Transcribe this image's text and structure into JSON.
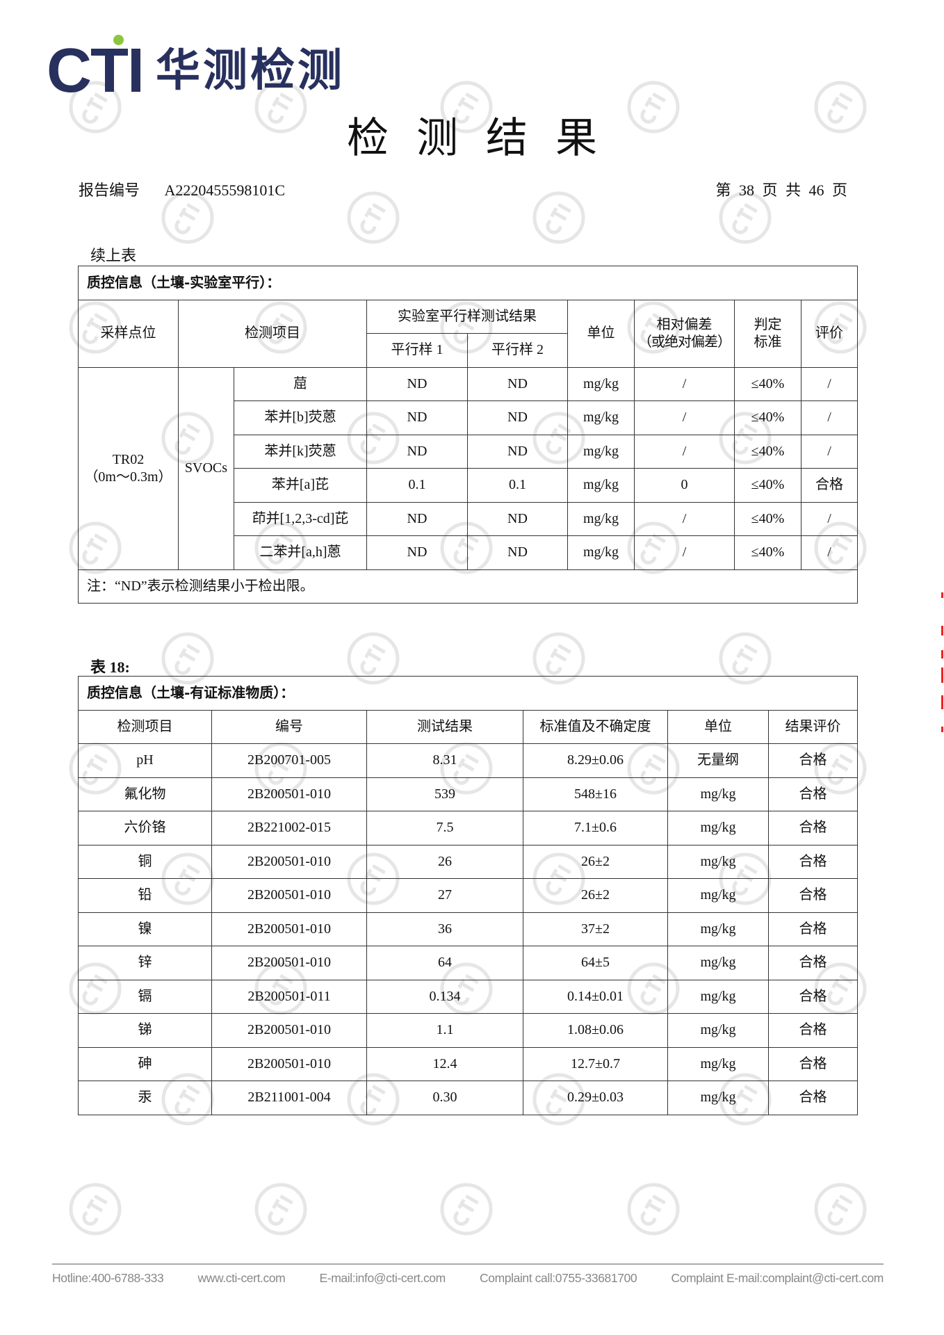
{
  "logo": {
    "brand": "CTI",
    "name_cn": "华测检测",
    "colors": {
      "primary": "#28305e",
      "dot": "#8cc63f"
    }
  },
  "watermark": {
    "text": "CTI"
  },
  "title": "检测结果",
  "report": {
    "label": "报告编号",
    "number": "A2220455598101C"
  },
  "page_info": {
    "text": "第 38 页 共 46 页",
    "current": 38,
    "total": 46
  },
  "continued_label": "续上表",
  "table1": {
    "title": "质控信息（土壤-实验室平行）：",
    "headers": {
      "site": "采样点位",
      "item": "检测项目",
      "parallel_group": "实验室平行样测试结果",
      "p1": "平行样 1",
      "p2": "平行样 2",
      "unit": "单位",
      "deviation_line1": "相对偏差",
      "deviation_line2": "（或绝对偏差）",
      "criterion_line1": "判定",
      "criterion_line2": "标准",
      "evaluation": "评价"
    },
    "site_line1": "TR02",
    "site_line2": "（0m～0.3m）",
    "category": "SVOCs",
    "rows": [
      {
        "item": "䓛",
        "p1": "ND",
        "p2": "ND",
        "unit": "mg/kg",
        "dev": "/",
        "crit": "≤40%",
        "eval": "/"
      },
      {
        "item": "苯并[b]荧蒽",
        "p1": "ND",
        "p2": "ND",
        "unit": "mg/kg",
        "dev": "/",
        "crit": "≤40%",
        "eval": "/"
      },
      {
        "item": "苯并[k]荧蒽",
        "p1": "ND",
        "p2": "ND",
        "unit": "mg/kg",
        "dev": "/",
        "crit": "≤40%",
        "eval": "/"
      },
      {
        "item": "苯并[a]芘",
        "p1": "0.1",
        "p2": "0.1",
        "unit": "mg/kg",
        "dev": "0",
        "crit": "≤40%",
        "eval": "合格"
      },
      {
        "item": "茚并[1,2,3-cd]芘",
        "p1": "ND",
        "p2": "ND",
        "unit": "mg/kg",
        "dev": "/",
        "crit": "≤40%",
        "eval": "/"
      },
      {
        "item": "二苯并[a,h]蒽",
        "p1": "ND",
        "p2": "ND",
        "unit": "mg/kg",
        "dev": "/",
        "crit": "≤40%",
        "eval": "/"
      }
    ],
    "note": "注：“ND”表示检测结果小于检出限。"
  },
  "table2": {
    "label": "表 18:",
    "title": "质控信息（土壤-有证标准物质）：",
    "headers": [
      "检测项目",
      "编号",
      "测试结果",
      "标准值及不确定度",
      "单位",
      "结果评价"
    ],
    "rows": [
      [
        "pH",
        "2B200701-005",
        "8.31",
        "8.29±0.06",
        "无量纲",
        "合格"
      ],
      [
        "氟化物",
        "2B200501-010",
        "539",
        "548±16",
        "mg/kg",
        "合格"
      ],
      [
        "六价铬",
        "2B221002-015",
        "7.5",
        "7.1±0.6",
        "mg/kg",
        "合格"
      ],
      [
        "铜",
        "2B200501-010",
        "26",
        "26±2",
        "mg/kg",
        "合格"
      ],
      [
        "铅",
        "2B200501-010",
        "27",
        "26±2",
        "mg/kg",
        "合格"
      ],
      [
        "镍",
        "2B200501-010",
        "36",
        "37±2",
        "mg/kg",
        "合格"
      ],
      [
        "锌",
        "2B200501-010",
        "64",
        "64±5",
        "mg/kg",
        "合格"
      ],
      [
        "镉",
        "2B200501-011",
        "0.134",
        "0.14±0.01",
        "mg/kg",
        "合格"
      ],
      [
        "锑",
        "2B200501-010",
        "1.1",
        "1.08±0.06",
        "mg/kg",
        "合格"
      ],
      [
        "砷",
        "2B200501-010",
        "12.4",
        "12.7±0.7",
        "mg/kg",
        "合格"
      ],
      [
        "汞",
        "2B211001-004",
        "0.30",
        "0.29±0.03",
        "mg/kg",
        "合格"
      ]
    ]
  },
  "footer": {
    "hotline": "Hotline:400-6788-333",
    "website": "www.cti-cert.com",
    "email": "E-mail:info@cti-cert.com",
    "complaint_call": "Complaint call:0755-33681700",
    "complaint_email": "Complaint E-mail:complaint@cti-cert.com"
  }
}
